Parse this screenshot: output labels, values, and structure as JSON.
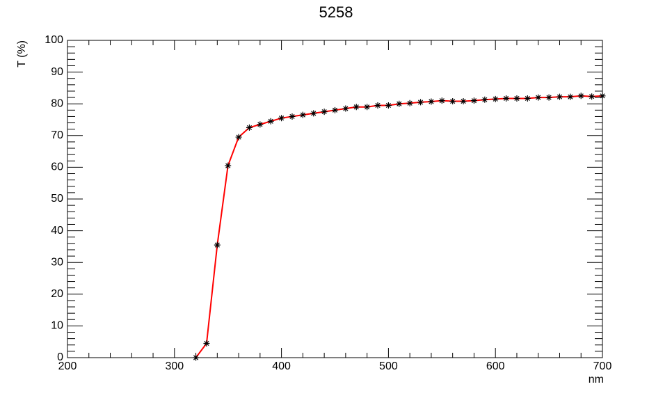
{
  "chart_data": {
    "type": "line",
    "title": "5258",
    "x_label": "nm",
    "y_label": "T (%)",
    "x": [
      320,
      330,
      340,
      350,
      360,
      370,
      380,
      390,
      400,
      410,
      420,
      430,
      440,
      450,
      460,
      470,
      480,
      490,
      500,
      510,
      520,
      530,
      540,
      550,
      560,
      570,
      580,
      590,
      600,
      610,
      620,
      630,
      640,
      650,
      660,
      670,
      680,
      690,
      700
    ],
    "series": [
      {
        "color": "#ff0000",
        "marker_color": "#000000",
        "values": [
          0,
          4.5,
          35.5,
          60.5,
          69.5,
          72.5,
          73.5,
          74.5,
          75.5,
          76,
          76.5,
          77,
          77.5,
          78,
          78.5,
          79,
          79,
          79.5,
          79.5,
          80,
          80.2,
          80.5,
          80.7,
          81,
          80.8,
          80.8,
          81,
          81.3,
          81.5,
          81.7,
          81.7,
          81.7,
          82,
          82,
          82.2,
          82.2,
          82.5,
          82.3,
          82.5
        ]
      }
    ],
    "xlim": [
      200,
      700
    ],
    "xticks": [
      200,
      300,
      400,
      500,
      600,
      700
    ],
    "ylim": [
      0,
      100
    ],
    "yticks": [
      0,
      10,
      20,
      30,
      40,
      50,
      60,
      70,
      80,
      90,
      100
    ]
  }
}
